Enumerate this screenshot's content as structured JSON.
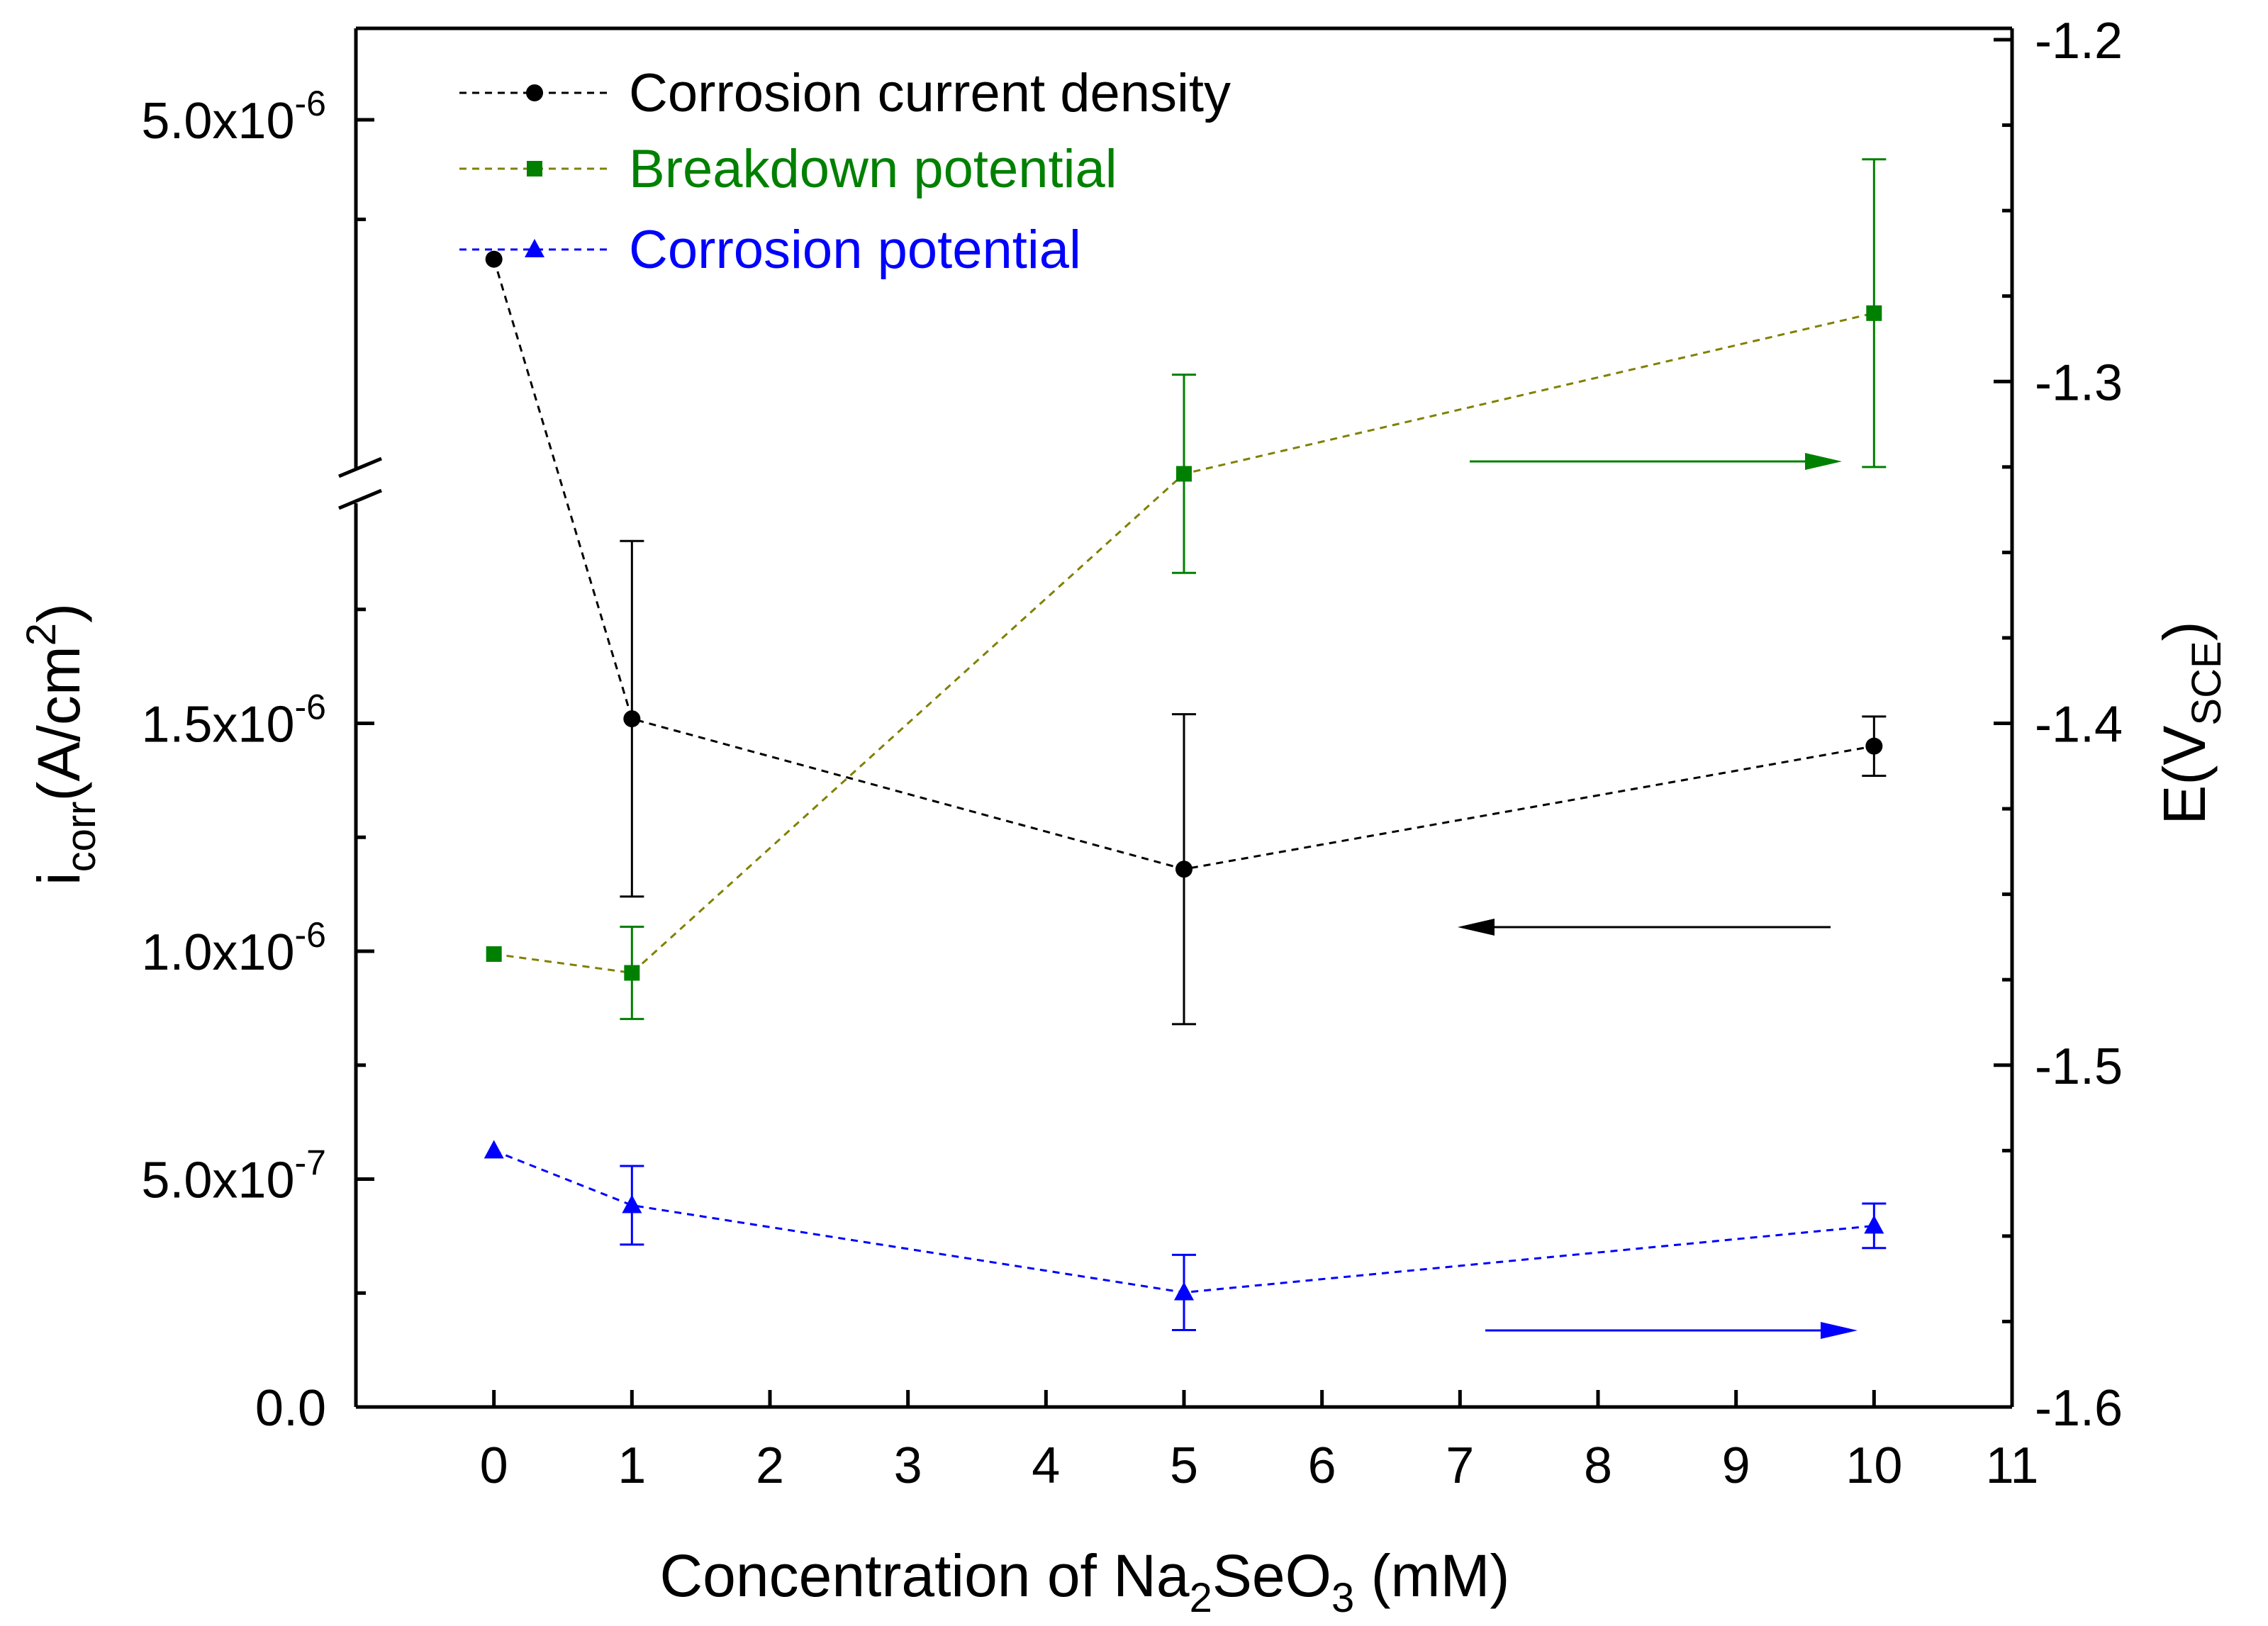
{
  "chart_data": {
    "type": "line",
    "title": "",
    "xlabel": {
      "main": "Concentration of Na",
      "sub1": "2",
      "mid": "SeO",
      "sub2": "3",
      "tail": " (mM)"
    },
    "ylabel_left": {
      "main": "i",
      "sub": "corr",
      "mid": "(A/cm",
      "sup": "2",
      "tail": ")"
    },
    "ylabel_right": {
      "main": "E(V",
      "sub": "SCE",
      "tail": ")"
    },
    "xlim": [
      -1,
      11
    ],
    "x_ticks": [
      "0",
      "1",
      "2",
      "3",
      "4",
      "5",
      "6",
      "7",
      "8",
      "9",
      "10",
      "11"
    ],
    "y_left_lower_lim": [
      0,
      2e-06
    ],
    "y_left_upper_lim": [
      2.75e-06,
      5.2e-06
    ],
    "y_left_ticks": [
      {
        "value": 0,
        "mantissa": "0.0",
        "exp": ""
      },
      {
        "value": 5e-07,
        "mantissa": "5.0x10",
        "exp": "-7"
      },
      {
        "value": 1e-06,
        "mantissa": "1.0x10",
        "exp": "-6"
      },
      {
        "value": 1.5e-06,
        "mantissa": "1.5x10",
        "exp": "-6"
      },
      {
        "value": 5e-06,
        "mantissa": "5.0x10",
        "exp": "-6"
      }
    ],
    "y_right_lim": [
      -1.6,
      -1.2
    ],
    "y_right_ticks": [
      "-1.6",
      "-1.5",
      "-1.4",
      "-1.3",
      "-1.2"
    ],
    "legend_position": "top-left",
    "series": [
      {
        "name": "Corrosion current density",
        "axis": "left",
        "color": "#000000",
        "line_color": "#000000",
        "marker": "circle",
        "x": [
          0,
          1,
          5,
          10
        ],
        "y": [
          4.3e-06,
          1.51e-06,
          1.18e-06,
          1.45e-06
        ],
        "err": [
          0,
          3.9e-07,
          3.4e-07,
          6.5e-08
        ]
      },
      {
        "name": "Breakdown potential",
        "axis": "right",
        "color": "#008000",
        "line_color": "#808000",
        "marker": "square",
        "x": [
          0,
          1,
          5,
          10
        ],
        "y": [
          -1.4675,
          -1.473,
          -1.327,
          -1.28
        ],
        "err": [
          0,
          0.0135,
          0.029,
          0.045
        ]
      },
      {
        "name": "Corrosion potential",
        "axis": "right",
        "color": "#0000ff",
        "line_color": "#0000ff",
        "marker": "triangle",
        "x": [
          0,
          1,
          5,
          10
        ],
        "y": [
          -1.525,
          -1.541,
          -1.5665,
          -1.547
        ],
        "err": [
          0,
          0.0115,
          0.011,
          0.0065
        ]
      }
    ]
  }
}
